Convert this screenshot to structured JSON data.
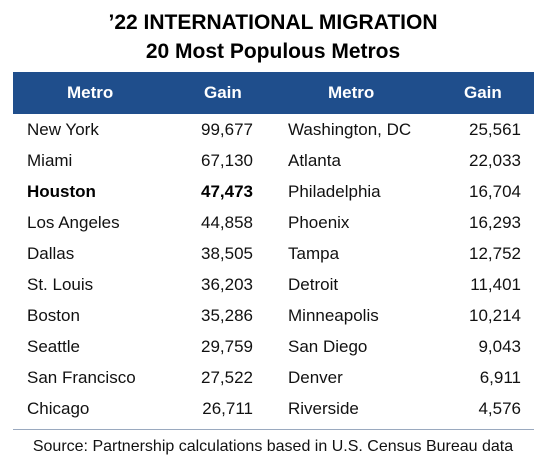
{
  "chart_data": {
    "type": "table",
    "title": "’22 INTERNATIONAL MIGRATION",
    "subtitle": "20 Most Populous Metros",
    "columns": [
      "Metro",
      "Gain",
      "Metro",
      "Gain"
    ],
    "left": [
      {
        "metro": "New York",
        "gain": "99,677"
      },
      {
        "metro": "Miami",
        "gain": "67,130"
      },
      {
        "metro": "Houston",
        "gain": "47,473",
        "highlight": true
      },
      {
        "metro": "Los Angeles",
        "gain": "44,858"
      },
      {
        "metro": "Dallas",
        "gain": "38,505"
      },
      {
        "metro": "St. Louis",
        "gain": "36,203"
      },
      {
        "metro": "Boston",
        "gain": "35,286"
      },
      {
        "metro": "Seattle",
        "gain": "29,759"
      },
      {
        "metro": "San Francisco",
        "gain": "27,522"
      },
      {
        "metro": "Chicago",
        "gain": "26,711"
      }
    ],
    "right": [
      {
        "metro": "Washington, DC",
        "gain": "25,561"
      },
      {
        "metro": "Atlanta",
        "gain": "22,033"
      },
      {
        "metro": "Philadelphia",
        "gain": "16,704"
      },
      {
        "metro": "Phoenix",
        "gain": "16,293"
      },
      {
        "metro": "Tampa",
        "gain": "12,752"
      },
      {
        "metro": "Detroit",
        "gain": "11,401"
      },
      {
        "metro": "Minneapolis",
        "gain": "10,214"
      },
      {
        "metro": "San Diego",
        "gain": "9,043"
      },
      {
        "metro": "Denver",
        "gain": "6,911"
      },
      {
        "metro": "Riverside",
        "gain": "4,576"
      }
    ],
    "source": "Source: Partnership calculations based in U.S. Census Bureau data"
  },
  "colors": {
    "header_bg": "#1f4e8c",
    "header_text": "#ffffff"
  }
}
